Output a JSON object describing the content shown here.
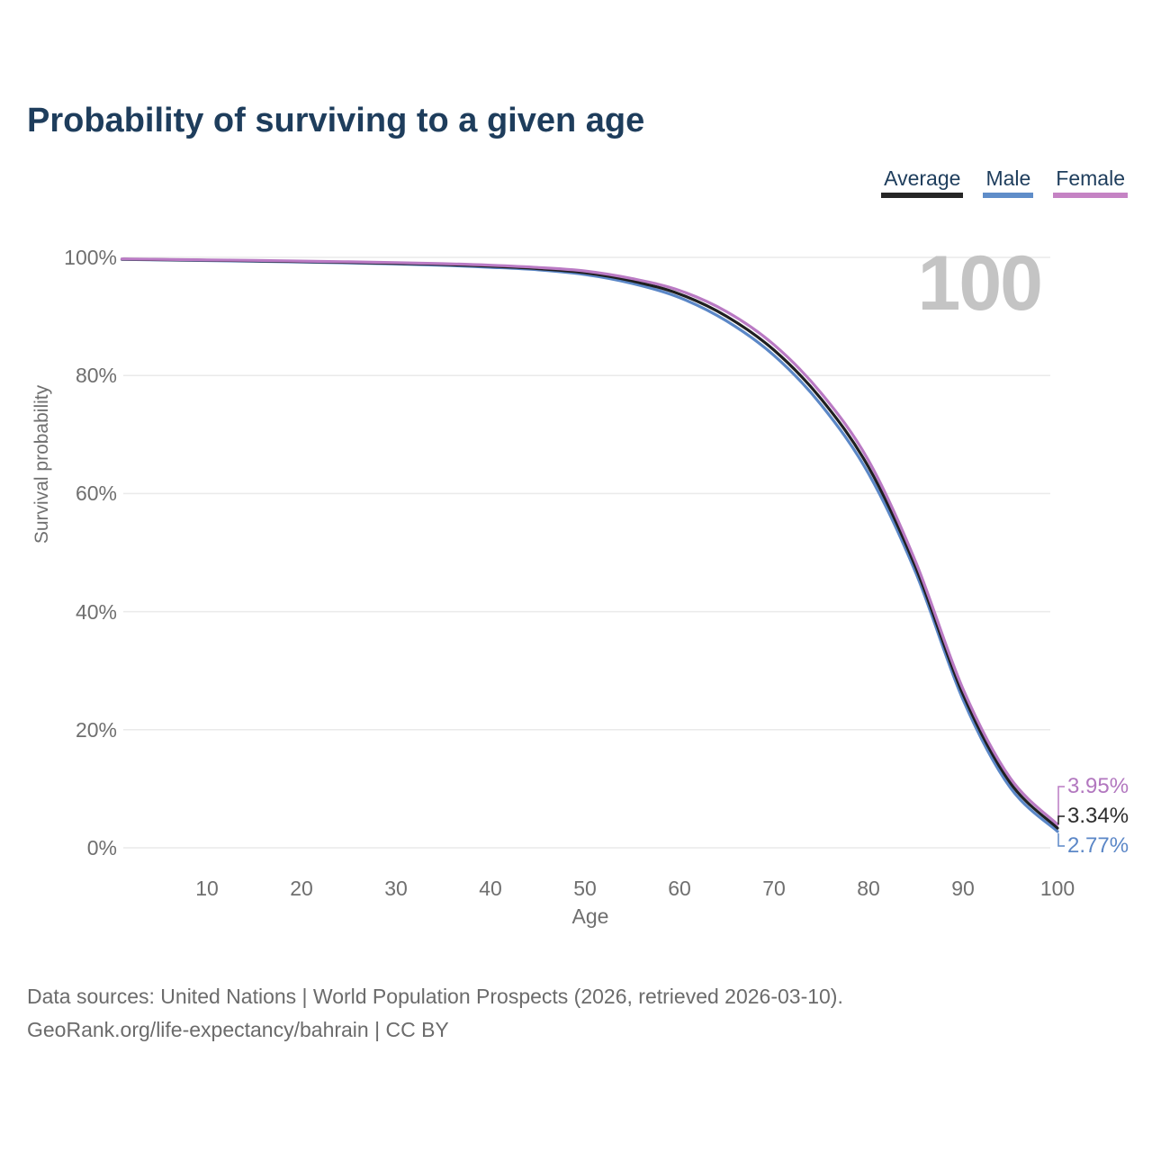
{
  "title": "Probability of surviving to a given age",
  "legend": [
    {
      "label": "Average",
      "color": "#262626"
    },
    {
      "label": "Male",
      "color": "#5f8dc9"
    },
    {
      "label": "Female",
      "color": "#c583c4"
    }
  ],
  "footer": {
    "line1": "Data sources: United Nations | World Population Prospects (2026, retrieved 2026-03-10).",
    "line2": "GeoRank.org/life-expectancy/bahrain | CC BY"
  },
  "chart_data": {
    "type": "line",
    "title": "Probability of surviving to a given age",
    "xlabel": "Age",
    "ylabel": "Survival probability",
    "xlim": [
      1,
      100
    ],
    "ylim": [
      0,
      100
    ],
    "grid": "horizontal",
    "gridline_color": "#eaeaea",
    "legend_position": "top-right",
    "watermark": "100",
    "x_ticks": [
      10,
      20,
      30,
      40,
      50,
      60,
      70,
      80,
      90,
      100
    ],
    "y_ticks": [
      {
        "value": 0,
        "label": "0%"
      },
      {
        "value": 20,
        "label": "20%"
      },
      {
        "value": 40,
        "label": "40%"
      },
      {
        "value": 60,
        "label": "60%"
      },
      {
        "value": 80,
        "label": "80%"
      },
      {
        "value": 100,
        "label": "100%"
      }
    ],
    "series": [
      {
        "name": "Average",
        "color": "#1f1f1f",
        "label_color": "#2d2d2d",
        "end_label": "3.34%",
        "points": [
          [
            1,
            99.7
          ],
          [
            5,
            99.62
          ],
          [
            10,
            99.52
          ],
          [
            15,
            99.42
          ],
          [
            20,
            99.3
          ],
          [
            25,
            99.16
          ],
          [
            30,
            99.0
          ],
          [
            35,
            98.8
          ],
          [
            40,
            98.5
          ],
          [
            45,
            98.1
          ],
          [
            50,
            97.4
          ],
          [
            55,
            96.0
          ],
          [
            60,
            93.8
          ],
          [
            65,
            90.0
          ],
          [
            70,
            84.3
          ],
          [
            75,
            76.0
          ],
          [
            80,
            64.5
          ],
          [
            85,
            47.5
          ],
          [
            90,
            26.0
          ],
          [
            95,
            11.0
          ],
          [
            100,
            3.34
          ]
        ]
      },
      {
        "name": "Male",
        "color": "#5b87c7",
        "label_color": "#5b87c7",
        "end_label": "2.77%",
        "points": [
          [
            1,
            99.66
          ],
          [
            5,
            99.57
          ],
          [
            10,
            99.46
          ],
          [
            15,
            99.35
          ],
          [
            20,
            99.22
          ],
          [
            25,
            99.06
          ],
          [
            30,
            98.88
          ],
          [
            35,
            98.66
          ],
          [
            40,
            98.33
          ],
          [
            45,
            97.9
          ],
          [
            50,
            97.1
          ],
          [
            55,
            95.6
          ],
          [
            60,
            93.2
          ],
          [
            65,
            89.2
          ],
          [
            70,
            83.4
          ],
          [
            75,
            75.0
          ],
          [
            80,
            63.4
          ],
          [
            85,
            46.6
          ],
          [
            90,
            25.1
          ],
          [
            95,
            10.2
          ],
          [
            100,
            2.77
          ]
        ]
      },
      {
        "name": "Female",
        "color": "#ba7ac4",
        "label_color": "#b277bf",
        "end_label": "3.95%",
        "points": [
          [
            1,
            99.74
          ],
          [
            5,
            99.67
          ],
          [
            10,
            99.58
          ],
          [
            15,
            99.49
          ],
          [
            20,
            99.38
          ],
          [
            25,
            99.26
          ],
          [
            30,
            99.12
          ],
          [
            35,
            98.94
          ],
          [
            40,
            98.67
          ],
          [
            45,
            98.3
          ],
          [
            50,
            97.7
          ],
          [
            55,
            96.4
          ],
          [
            60,
            94.4
          ],
          [
            65,
            90.8
          ],
          [
            70,
            85.2
          ],
          [
            75,
            77.0
          ],
          [
            80,
            65.6
          ],
          [
            85,
            48.4
          ],
          [
            90,
            26.9
          ],
          [
            95,
            11.8
          ],
          [
            100,
            3.95
          ]
        ]
      }
    ]
  }
}
